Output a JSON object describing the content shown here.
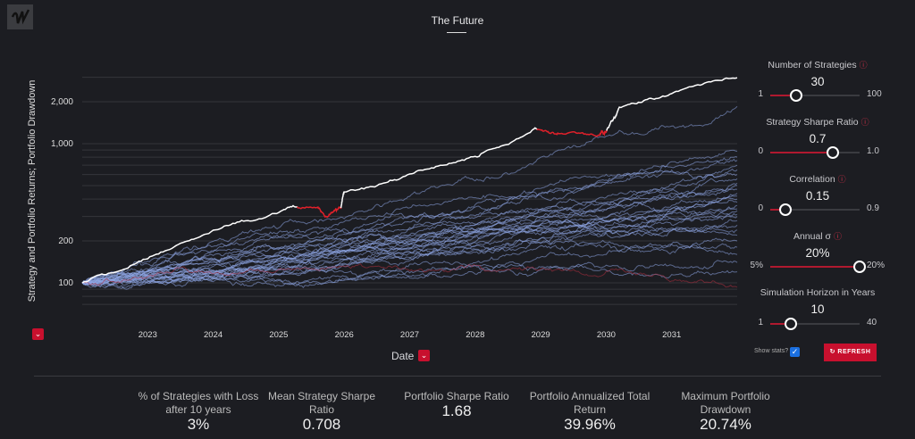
{
  "title": "The Future",
  "logo_text": "W",
  "chart_data": {
    "type": "line",
    "ylabel": "Strategy and Portfolio Returns; Portfolio Drawdown",
    "xlabel": "Date",
    "yscale": "log",
    "ylim": [
      60,
      3000
    ],
    "xlim": [
      2022.0,
      2032.0
    ],
    "yticks": [
      "100",
      "200",
      "1,000",
      "2,000"
    ],
    "ytick_values": [
      100,
      200,
      1000,
      2000
    ],
    "xticks": [
      "2023",
      "2024",
      "2025",
      "2026",
      "2027",
      "2028",
      "2029",
      "2030",
      "2031"
    ],
    "grid": true,
    "portfolio": {
      "color": "#ffffff",
      "drawdown_color": "#e0202a",
      "x": [
        2022.0,
        2023,
        2024,
        2025,
        2025.6,
        2025.75,
        2025.95,
        2026,
        2027,
        2028,
        2028.9,
        2029.3,
        2029.9,
        2030,
        2030.2,
        2031,
        2032
      ],
      "y": [
        100,
        149,
        239,
        320,
        350,
        300,
        345,
        450,
        605,
        810,
        1280,
        1180,
        1150,
        1210,
        1830,
        2290,
        2970
      ]
    },
    "strategies": {
      "color": "#8fa8e8",
      "loss_color": "#b03040",
      "final_values": [
        1850,
        880,
        800,
        760,
        700,
        650,
        600,
        560,
        520,
        500,
        470,
        440,
        420,
        400,
        380,
        360,
        340,
        330,
        310,
        300,
        280,
        260,
        240,
        220,
        200,
        180,
        160,
        140,
        120,
        93
      ]
    }
  },
  "controls": [
    {
      "label": "Number of Strategies",
      "value": "30",
      "min": "1",
      "max": "100",
      "fraction": 0.29
    },
    {
      "label": "Strategy Sharpe Ratio",
      "value": "0.7",
      "min": "0",
      "max": "1.0",
      "fraction": 0.7
    },
    {
      "label": "Correlation",
      "value": "0.15",
      "min": "0",
      "max": "0.9",
      "fraction": 0.17
    },
    {
      "label": "Annual σ",
      "value": "20%",
      "min": "5%",
      "max": "20%",
      "fraction": 1.0
    },
    {
      "label": "Simulation Horizon in Years",
      "value": "10",
      "min": "1",
      "max": "40",
      "fraction": 0.23
    }
  ],
  "show_stats_label": "Show stats?",
  "show_stats_checked": true,
  "refresh_label": "REFRESH",
  "stats": [
    {
      "label": "% of Strategies with Loss after 10 years",
      "value": "3%"
    },
    {
      "label": "Mean Strategy Sharpe Ratio",
      "value": "0.708"
    },
    {
      "label": "Portfolio Sharpe Ratio",
      "value": "1.68"
    },
    {
      "label": "Portfolio Annualized Total Return",
      "value": "39.96%"
    },
    {
      "label": "Maximum Portfolio Drawdown",
      "value": "20.74%"
    }
  ],
  "accent": "#c8102e"
}
